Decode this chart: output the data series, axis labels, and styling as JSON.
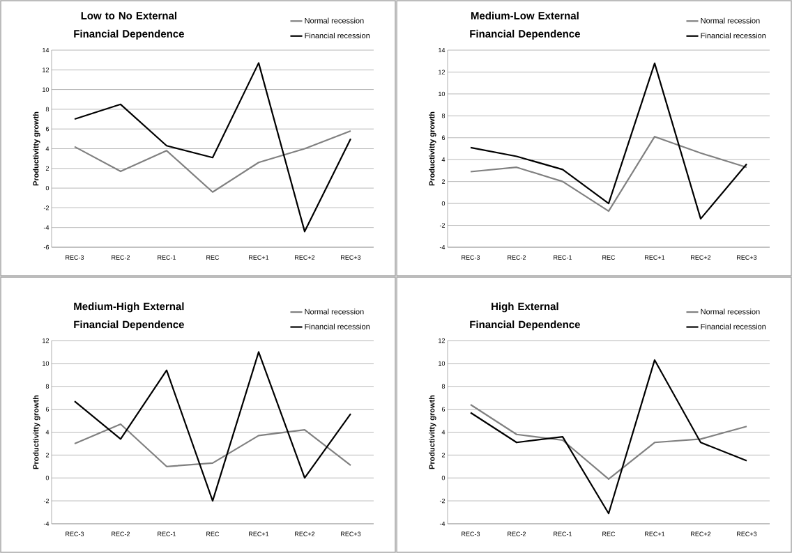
{
  "chart_data": [
    {
      "type": "line",
      "title": "Low to No External Financial Dependence",
      "ylabel": "Productivitty growth",
      "categories": [
        "REC-3",
        "REC-2",
        "REC-1",
        "REC",
        "REC+1",
        "REC+2",
        "REC+3"
      ],
      "series": [
        {
          "name": "Normal recession",
          "color": "#808080",
          "values": [
            4.2,
            1.7,
            3.8,
            -0.4,
            2.6,
            4.0,
            5.8
          ]
        },
        {
          "name": "Financial recession",
          "color": "#000000",
          "values": [
            7.0,
            8.5,
            4.3,
            3.1,
            12.7,
            -4.4,
            5.0
          ]
        }
      ],
      "ylim": [
        -6,
        14
      ],
      "yticks": [
        -6,
        -4,
        -2,
        0,
        2,
        4,
        6,
        8,
        10,
        12,
        14
      ],
      "grid": "y",
      "legend": "top right"
    },
    {
      "type": "line",
      "title": "Medium-Low External Financial Dependence",
      "ylabel": "Productivitty growth",
      "categories": [
        "REC-3",
        "REC-2",
        "REC-1",
        "REC",
        "REC+1",
        "REC+2",
        "REC+3"
      ],
      "series": [
        {
          "name": "Normal recession",
          "color": "#808080",
          "values": [
            2.9,
            3.3,
            2.0,
            -0.7,
            6.1,
            4.6,
            3.3
          ]
        },
        {
          "name": "Financial recession",
          "color": "#000000",
          "values": [
            5.1,
            4.3,
            3.1,
            0.0,
            12.8,
            -1.4,
            3.6
          ]
        }
      ],
      "ylim": [
        -4,
        14
      ],
      "yticks": [
        -4,
        -2,
        0,
        2,
        4,
        6,
        8,
        10,
        12,
        14
      ],
      "grid": "y",
      "legend": "top right"
    },
    {
      "type": "line",
      "title": "Medium-High External Financial Dependence",
      "ylabel": "Productivitty growth",
      "categories": [
        "REC-3",
        "REC-2",
        "REC-1",
        "REC",
        "REC+1",
        "REC+2",
        "REC+3"
      ],
      "series": [
        {
          "name": "Normal recession",
          "color": "#808080",
          "values": [
            3.0,
            4.7,
            1.0,
            1.3,
            3.7,
            4.2,
            1.1
          ]
        },
        {
          "name": "Financial recession",
          "color": "#000000",
          "values": [
            6.7,
            3.4,
            9.4,
            -2.0,
            11.0,
            0.0,
            5.6
          ]
        }
      ],
      "ylim": [
        -4,
        12
      ],
      "yticks": [
        -4,
        -2,
        0,
        2,
        4,
        6,
        8,
        10,
        12
      ],
      "grid": "y",
      "legend": "top right"
    },
    {
      "type": "line",
      "title": "High External Financial Dependence",
      "ylabel": "Productivitty growth",
      "categories": [
        "REC-3",
        "REC-2",
        "REC-1",
        "REC",
        "REC+1",
        "REC+2",
        "REC+3"
      ],
      "series": [
        {
          "name": "Normal recession",
          "color": "#808080",
          "values": [
            6.4,
            3.8,
            3.3,
            -0.1,
            3.1,
            3.4,
            4.5
          ]
        },
        {
          "name": "Financial recession",
          "color": "#000000",
          "values": [
            5.7,
            3.1,
            3.6,
            -3.1,
            10.3,
            3.1,
            1.5
          ]
        }
      ],
      "ylim": [
        -4,
        12
      ],
      "yticks": [
        -4,
        -2,
        0,
        2,
        4,
        6,
        8,
        10,
        12
      ],
      "grid": "y",
      "legend": "top right"
    }
  ]
}
